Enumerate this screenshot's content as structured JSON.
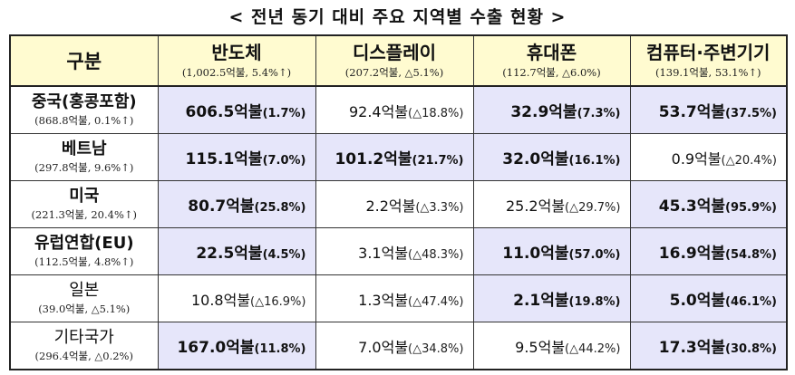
{
  "title": "< 전년 동기 대비 주요 지역별 수출 현황 >",
  "header": {
    "corner": "구분",
    "columns": [
      {
        "name": "반도체",
        "sub": "(1,002.5억불, 5.4%↑)"
      },
      {
        "name": "디스플레이",
        "sub": "(207.2억불, △5.1%)"
      },
      {
        "name": "휴대폰",
        "sub": "(112.7억불, △6.0%)"
      },
      {
        "name": "컴퓨터·주변기기",
        "sub": "(139.1억불, 53.1%↑)"
      }
    ]
  },
  "rows": [
    {
      "region": "중국(홍콩포함)",
      "region_sub": "(868.8억불, 0.1%↑)",
      "cells": [
        {
          "value": "606.5억불",
          "pct": "(1.7%)",
          "highlight": true
        },
        {
          "value": "92.4억불",
          "pct": "(△18.8%)",
          "highlight": false
        },
        {
          "value": "32.9억불",
          "pct": "(7.3%)",
          "highlight": true
        },
        {
          "value": "53.7억불",
          "pct": "(37.5%)",
          "highlight": true
        }
      ]
    },
    {
      "region": "베트남",
      "region_sub": "(297.8억불, 9.6%↑)",
      "cells": [
        {
          "value": "115.1억불",
          "pct": "(7.0%)",
          "highlight": true
        },
        {
          "value": "101.2억불",
          "pct": "(21.7%)",
          "highlight": true
        },
        {
          "value": "32.0억불",
          "pct": "(16.1%)",
          "highlight": true
        },
        {
          "value": "0.9억불",
          "pct": "(△20.4%)",
          "highlight": false
        }
      ]
    },
    {
      "region": "미국",
      "region_sub": "(221.3억불, 20.4%↑)",
      "cells": [
        {
          "value": "80.7억불",
          "pct": "(25.8%)",
          "highlight": true
        },
        {
          "value": "2.2억불",
          "pct": "(△3.3%)",
          "highlight": false
        },
        {
          "value": "25.2억불",
          "pct": "(△29.7%)",
          "highlight": false
        },
        {
          "value": "45.3억불",
          "pct": "(95.9%)",
          "highlight": true
        }
      ]
    },
    {
      "region": "유럽연합(EU)",
      "region_sub": "(112.5억불, 4.8%↑)",
      "cells": [
        {
          "value": "22.5억불",
          "pct": "(4.5%)",
          "highlight": true
        },
        {
          "value": "3.1억불",
          "pct": "(△48.3%)",
          "highlight": false
        },
        {
          "value": "11.0억불",
          "pct": "(57.0%)",
          "highlight": true
        },
        {
          "value": "16.9억불",
          "pct": "(54.8%)",
          "highlight": true
        }
      ]
    },
    {
      "region": "일본",
      "region_sub": "(39.0억불, △5.1%)",
      "cells": [
        {
          "value": "10.8억불",
          "pct": "(△16.9%)",
          "highlight": false
        },
        {
          "value": "1.3억불",
          "pct": "(△47.4%)",
          "highlight": false
        },
        {
          "value": "2.1억불",
          "pct": "(19.8%)",
          "highlight": true
        },
        {
          "value": "5.0억불",
          "pct": "(46.1%)",
          "highlight": true
        }
      ]
    },
    {
      "region": "기타국가",
      "region_sub": "(296.4억불, △0.2%)",
      "cells": [
        {
          "value": "167.0억불",
          "pct": "(11.8%)",
          "highlight": true
        },
        {
          "value": "7.0억불",
          "pct": "(△34.8%)",
          "highlight": false
        },
        {
          "value": "9.5억불",
          "pct": "(△44.2%)",
          "highlight": false
        },
        {
          "value": "17.3억불",
          "pct": "(30.8%)",
          "highlight": true
        }
      ]
    }
  ],
  "colors": {
    "header_bg": "#fffbd0",
    "highlight_bg": "#e6e6fa"
  }
}
